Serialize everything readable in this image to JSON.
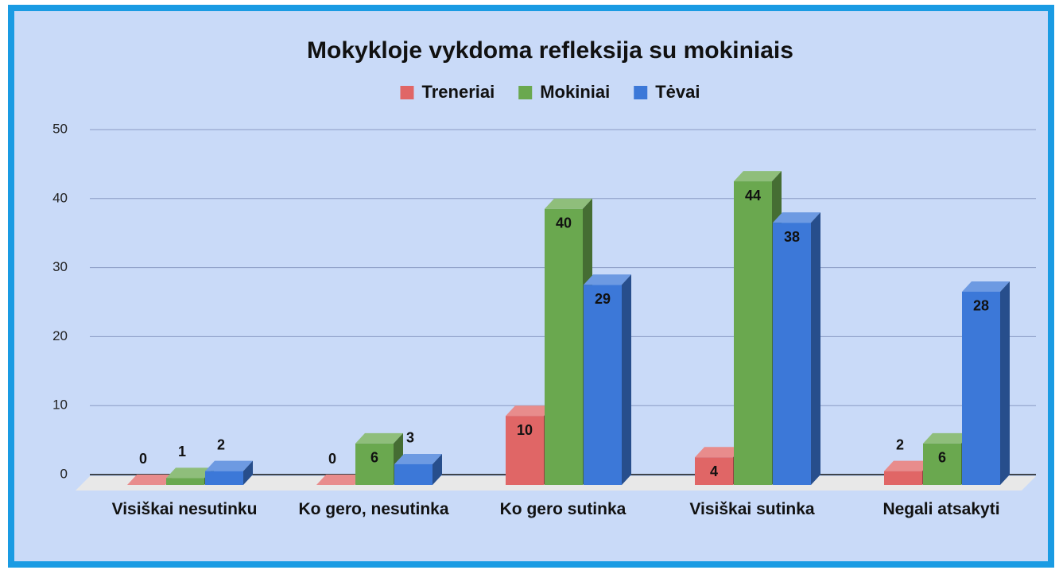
{
  "chart_data": {
    "type": "bar3d",
    "title": "Mokykloje vykdoma refleksija su mokiniais",
    "categories": [
      "Visiškai nesutinku",
      "Ko gero, nesutinka",
      "Ko gero sutinka",
      "Visiškai sutinka",
      "Negali atsakyti"
    ],
    "series": [
      {
        "name": "Treneriai",
        "color": "#e06666",
        "values": [
          0,
          0,
          10,
          4,
          2
        ]
      },
      {
        "name": "Mokiniai",
        "color": "#6aa84f",
        "values": [
          1,
          6,
          40,
          44,
          6
        ]
      },
      {
        "name": "Tėvai",
        "color": "#3c78d8",
        "values": [
          2,
          3,
          29,
          38,
          28
        ]
      }
    ],
    "ylim": [
      0,
      50
    ],
    "yticks": [
      0,
      10,
      20,
      30,
      40,
      50
    ],
    "grid": true,
    "legend": "top"
  }
}
